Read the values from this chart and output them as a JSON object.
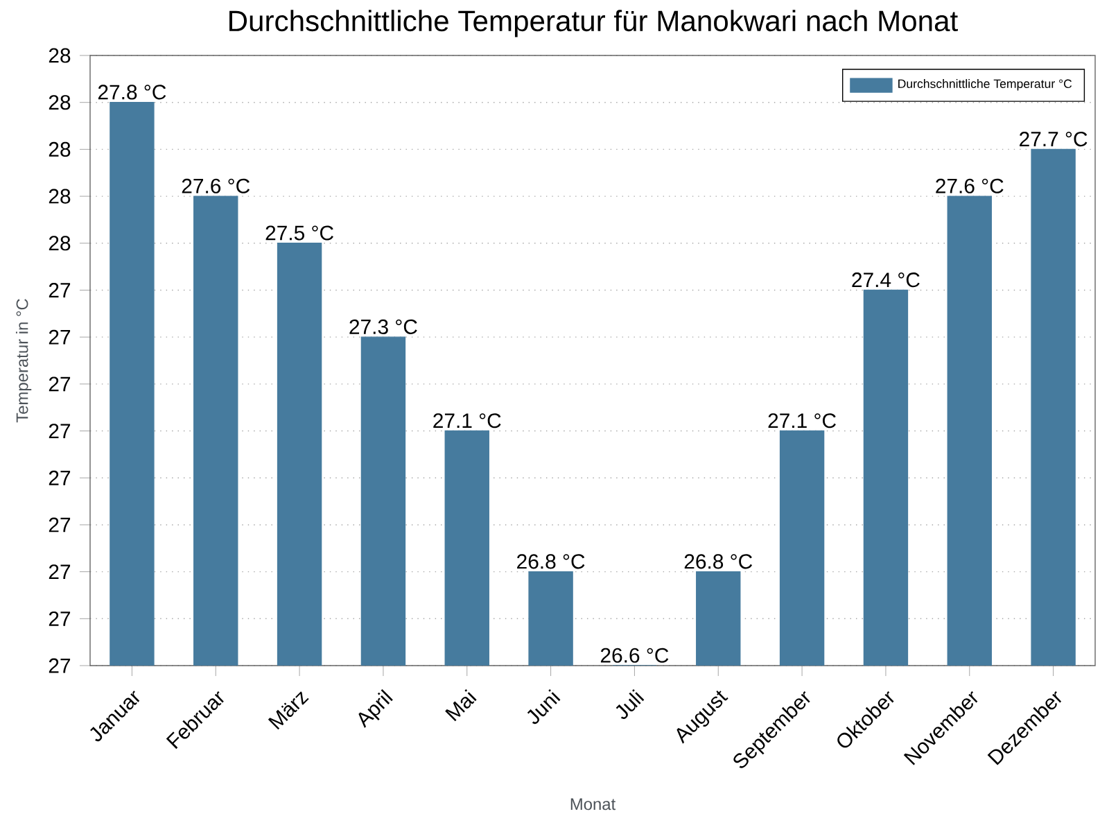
{
  "chart_data": {
    "type": "bar",
    "title": "Durchschnittliche Temperatur für Manokwari nach Monat",
    "xlabel": "Monat",
    "ylabel": "Temperatur in °C",
    "categories": [
      "Januar",
      "Februar",
      "März",
      "April",
      "Mai",
      "Juni",
      "Juli",
      "August",
      "September",
      "Oktober",
      "November",
      "Dezember"
    ],
    "series": [
      {
        "name": "Durchschnittliche Temperatur °C",
        "color": "#467b9e",
        "values": [
          27.8,
          27.6,
          27.5,
          27.3,
          27.1,
          26.8,
          26.6,
          26.8,
          27.1,
          27.4,
          27.6,
          27.7
        ],
        "value_labels": [
          "27.8 °C",
          "27.6 °C",
          "27.5 °C",
          "27.3 °C",
          "27.1 °C",
          "26.8 °C",
          "26.6 °C",
          "26.8 °C",
          "27.1 °C",
          "27.4 °C",
          "27.6 °C",
          "27.7 °C"
        ]
      }
    ],
    "ylim": [
      26.6,
      27.9
    ],
    "yticks": [
      {
        "value": 26.6,
        "label": "27"
      },
      {
        "value": 26.7,
        "label": "27"
      },
      {
        "value": 26.8,
        "label": "27"
      },
      {
        "value": 26.9,
        "label": "27"
      },
      {
        "value": 27.0,
        "label": "27"
      },
      {
        "value": 27.1,
        "label": "27"
      },
      {
        "value": 27.2,
        "label": "27"
      },
      {
        "value": 27.3,
        "label": "27"
      },
      {
        "value": 27.4,
        "label": "27"
      },
      {
        "value": 27.5,
        "label": "28"
      },
      {
        "value": 27.6,
        "label": "28"
      },
      {
        "value": 27.7,
        "label": "28"
      },
      {
        "value": 27.8,
        "label": "28"
      },
      {
        "value": 27.9,
        "label": "28"
      }
    ],
    "grid": "y",
    "legend": "top right"
  }
}
